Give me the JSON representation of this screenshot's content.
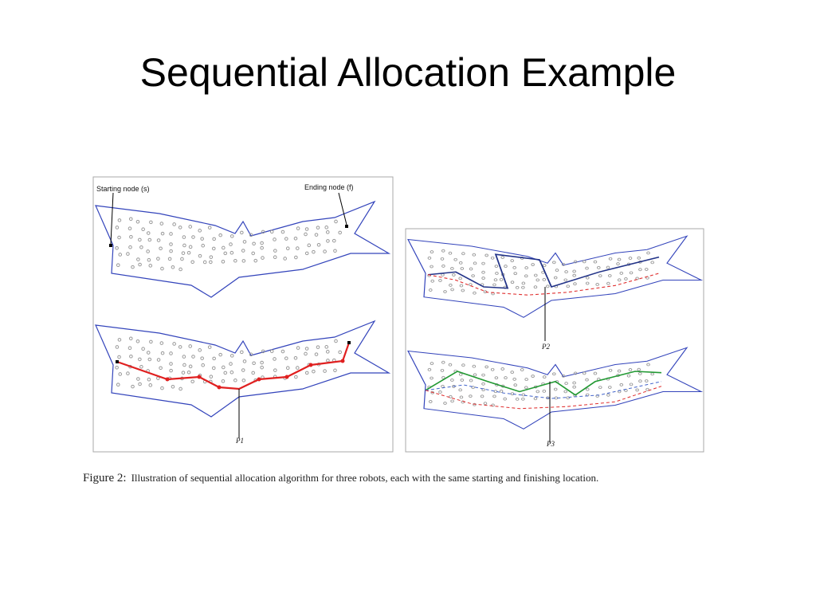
{
  "title": "Sequential Allocation Example",
  "figure": {
    "start_label": "Starting node (s)",
    "end_label": "Ending node (f)",
    "path_labels": [
      "P1",
      "P2",
      "P3"
    ],
    "caption_head": "Figure 2:",
    "caption_text": "Illustration of sequential allocation algorithm for three robots, each with the same starting and finishing location."
  }
}
